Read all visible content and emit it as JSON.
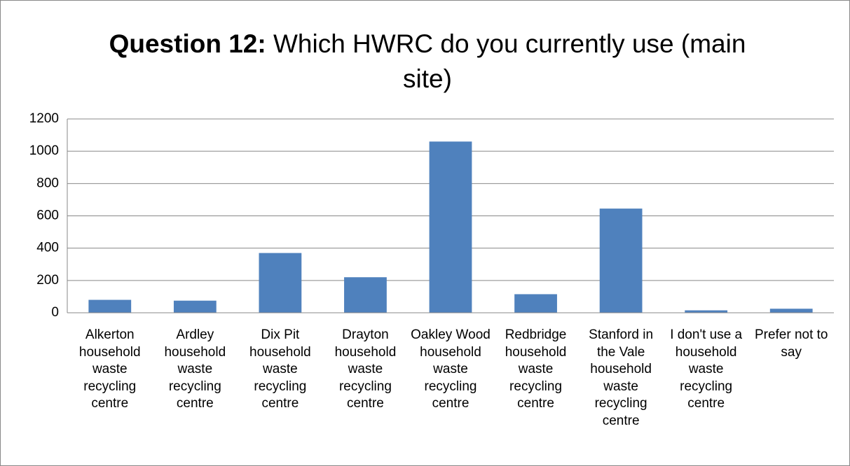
{
  "chart_data": {
    "type": "bar",
    "title": {
      "lead": "Question 12:",
      "text": "Which HWRC do you currently use (main site)"
    },
    "categories": [
      "Alkerton household waste recycling centre",
      "Ardley household waste recycling centre",
      "Dix Pit household waste recycling centre",
      "Drayton household waste recycling centre",
      "Oakley Wood household waste recycling centre",
      "Redbridge household waste recycling centre",
      "Stanford in the Vale household waste recycling centre",
      "I don't use a household waste recycling centre",
      "Prefer not to say"
    ],
    "values": [
      80,
      75,
      370,
      220,
      1060,
      115,
      645,
      15,
      25
    ],
    "color": "#4f81bd",
    "ylim": [
      0,
      1200
    ],
    "yticks": [
      0,
      200,
      400,
      600,
      800,
      1000,
      1200
    ],
    "grid": true
  }
}
